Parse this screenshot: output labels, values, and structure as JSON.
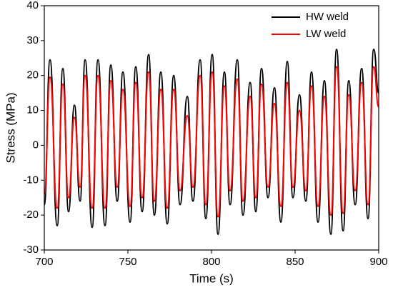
{
  "chart_data": {
    "type": "line",
    "xlabel": "Time (s)",
    "ylabel": "Stress (MPa)",
    "x": [
      700,
      703.4,
      707.7,
      711.1,
      714.5,
      718.0,
      721.4,
      724.4,
      728.6,
      732.1,
      736.3,
      739.8,
      743.6,
      747.0,
      751.3,
      754.7,
      758.5,
      762.4,
      765.8,
      769.7,
      773.5,
      777.4,
      781.2,
      785.5,
      788.9,
      793.2,
      796.6,
      800.4,
      803.9,
      807.7,
      811.1,
      815.4,
      818.8,
      823.1,
      826.5,
      829.9,
      833.8,
      837.6,
      841.5,
      845.3,
      848.7,
      852.6,
      856.4,
      859.8,
      863.7,
      867.5,
      871.4,
      874.8,
      878.7,
      882.1,
      885.9,
      889.8,
      893.6,
      897.0,
      900
    ],
    "series": [
      {
        "name": "HW weld",
        "color": "#000000",
        "values": [
          -17,
          24.5,
          -23,
          22,
          -19,
          11.5,
          -16,
          24.5,
          -23.5,
          24.5,
          -23,
          23,
          -16,
          21,
          -22,
          22.5,
          -19,
          26,
          -20,
          21,
          -22.5,
          20,
          -17,
          14,
          -16,
          24.5,
          -21,
          26,
          -25.5,
          21,
          -17,
          24.5,
          -20,
          18,
          -19,
          22,
          -15,
          16.5,
          -22,
          24,
          -15,
          14.5,
          -16,
          21,
          -22,
          18.5,
          -25.5,
          27.5,
          -24.5,
          18.5,
          -17,
          22,
          -21,
          27.5,
          15
        ]
      },
      {
        "name": "LW weld",
        "color": "#ff0000",
        "values": [
          -14,
          19.5,
          -18,
          17.5,
          -15,
          8,
          -12,
          20,
          -18,
          20,
          -18,
          18.5,
          -12,
          16,
          -17.5,
          18,
          -15,
          21,
          -16,
          16,
          -18,
          16,
          -13,
          8.5,
          -12,
          20,
          -17,
          21,
          -20.5,
          17,
          -13,
          19,
          -16,
          14,
          -15,
          17.5,
          -12,
          12,
          -17.5,
          18,
          -12,
          10,
          -13,
          17,
          -17.5,
          14,
          -20,
          22.5,
          -19.5,
          14.5,
          -13,
          18,
          -17,
          22.5,
          11
        ]
      }
    ],
    "xlim": [
      700,
      900
    ],
    "xticks": [
      700,
      750,
      800,
      850,
      900
    ],
    "ylim": [
      -30,
      40
    ],
    "yticks": [
      -30,
      -20,
      -10,
      0,
      10,
      20,
      30,
      40
    ],
    "legend": "upper right",
    "grid": false
  }
}
